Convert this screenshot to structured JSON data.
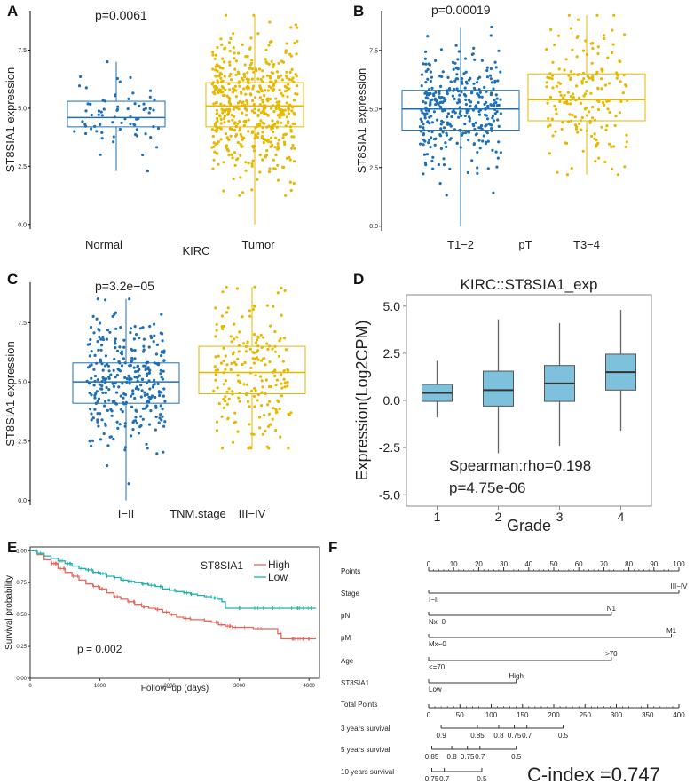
{
  "figure": {
    "panel_labels": [
      "A",
      "B",
      "C",
      "D",
      "E",
      "F"
    ]
  },
  "chart_data": [
    {
      "panel": "A",
      "type": "box_jitter",
      "ylabel": "ST8SIA1 expression",
      "xlabel": "KIRC",
      "pvalue": "p=0.0061",
      "yticks": [
        "0.0",
        "2.5",
        "5.0",
        "7.5"
      ],
      "ylim": [
        -0.2,
        9.2
      ],
      "groups": [
        {
          "label": "Normal",
          "color": "#1f6fb5",
          "n": 72,
          "min": 2.3,
          "q1": 4.2,
          "median": 4.6,
          "q3": 5.3,
          "max": 7.0
        },
        {
          "label": "Tumor",
          "color": "#e7b800",
          "n": 530,
          "min": 0.0,
          "q1": 4.2,
          "median": 5.1,
          "q3": 6.1,
          "max": 9.0
        }
      ]
    },
    {
      "panel": "B",
      "type": "box_jitter",
      "ylabel": "ST8SIA1 expression",
      "xlabel": "pT",
      "pvalue": "p=0.00019",
      "yticks": [
        "0.0",
        "2.5",
        "5.0",
        "7.5"
      ],
      "ylim": [
        -0.2,
        9.2
      ],
      "groups": [
        {
          "label": "T1−2",
          "color": "#1f6fb5",
          "n": 340,
          "min": 0.0,
          "q1": 4.1,
          "median": 5.0,
          "q3": 5.8,
          "max": 8.5
        },
        {
          "label": "T3−4",
          "color": "#e7b800",
          "n": 190,
          "min": 2.2,
          "q1": 4.5,
          "median": 5.4,
          "q3": 6.5,
          "max": 9.0
        }
      ]
    },
    {
      "panel": "C",
      "type": "box_jitter",
      "ylabel": "ST8SIA1 expression",
      "xlabel": "TNM.stage",
      "pvalue": "p=3.2e−05",
      "yticks": [
        "0.0",
        "2.5",
        "5.0",
        "7.5"
      ],
      "ylim": [
        -0.2,
        9.2
      ],
      "groups": [
        {
          "label": "I−II",
          "color": "#1f6fb5",
          "n": 320,
          "min": 0.0,
          "q1": 4.1,
          "median": 5.0,
          "q3": 5.8,
          "max": 8.5
        },
        {
          "label": "III−IV",
          "color": "#e7b800",
          "n": 210,
          "min": 2.2,
          "q1": 4.5,
          "median": 5.4,
          "q3": 6.5,
          "max": 9.0
        }
      ]
    },
    {
      "panel": "D",
      "type": "boxplot",
      "title": "KIRC::ST8SIA1_exp",
      "ylabel": "Expression(Log2CPM)",
      "xlabel": "Grade",
      "yticks": [
        "5.0",
        "2.5",
        "0.0",
        "-2.5",
        "-5.0"
      ],
      "ylim": [
        -5.6,
        5.6
      ],
      "fill": "#7ec1dc",
      "categories": [
        "1",
        "2",
        "3",
        "4"
      ],
      "boxes": [
        {
          "min": -0.9,
          "q1": -0.05,
          "median": 0.4,
          "q3": 0.85,
          "max": 2.1
        },
        {
          "min": -2.8,
          "q1": -0.3,
          "median": 0.55,
          "q3": 1.55,
          "max": 4.3
        },
        {
          "min": -2.4,
          "q1": -0.05,
          "median": 0.9,
          "q3": 1.85,
          "max": 4.1
        },
        {
          "min": -1.6,
          "q1": 0.55,
          "median": 1.5,
          "q3": 2.45,
          "max": 4.8
        }
      ],
      "annotation": [
        "Spearman:rho=0.198",
        "p=4.75e-06"
      ]
    },
    {
      "panel": "E",
      "type": "line",
      "subtype": "kaplan_meier",
      "xlabel": "Follow−up (days)",
      "ylabel": "Survival probability",
      "xticks": [
        "0",
        "1000",
        "2000",
        "3000",
        "4000"
      ],
      "yticks": [
        "0.00",
        "0.25",
        "0.50",
        "0.75",
        "1.00"
      ],
      "xlim": [
        0,
        4150
      ],
      "ylim": [
        0,
        1.03
      ],
      "legend_title": "ST8SIA1",
      "pvalue": "p = 0.002",
      "series": [
        {
          "name": "High",
          "color": "#e8665a",
          "x": [
            0,
            100,
            200,
            300,
            400,
            500,
            600,
            700,
            800,
            900,
            1000,
            1100,
            1200,
            1300,
            1400,
            1500,
            1600,
            1700,
            1800,
            1900,
            2000,
            2100,
            2200,
            2300,
            2400,
            2500,
            2600,
            2700,
            2800,
            2900,
            3000,
            3100,
            3200,
            3300,
            3400,
            3500,
            3550,
            3600,
            3700,
            3800,
            3900,
            4000,
            4100
          ],
          "y": [
            1.0,
            0.97,
            0.93,
            0.9,
            0.86,
            0.83,
            0.8,
            0.77,
            0.74,
            0.72,
            0.7,
            0.67,
            0.64,
            0.62,
            0.6,
            0.58,
            0.56,
            0.55,
            0.54,
            0.52,
            0.5,
            0.48,
            0.47,
            0.46,
            0.46,
            0.45,
            0.44,
            0.42,
            0.41,
            0.4,
            0.4,
            0.4,
            0.39,
            0.39,
            0.39,
            0.39,
            0.35,
            0.31,
            0.31,
            0.31,
            0.31,
            0.31,
            0.31
          ]
        },
        {
          "name": "Low",
          "color": "#20b2aa",
          "x": [
            0,
            100,
            200,
            300,
            400,
            500,
            600,
            700,
            800,
            900,
            1000,
            1100,
            1200,
            1300,
            1400,
            1500,
            1600,
            1700,
            1800,
            1900,
            2000,
            2100,
            2200,
            2300,
            2400,
            2500,
            2600,
            2700,
            2750,
            2800,
            2900,
            3000,
            3100,
            3200,
            3300,
            3400,
            3500,
            3600,
            3700,
            3800,
            3900,
            4000,
            4100
          ],
          "y": [
            1.0,
            0.98,
            0.96,
            0.94,
            0.92,
            0.9,
            0.88,
            0.86,
            0.85,
            0.83,
            0.82,
            0.8,
            0.79,
            0.77,
            0.76,
            0.75,
            0.74,
            0.73,
            0.72,
            0.7,
            0.69,
            0.68,
            0.67,
            0.66,
            0.65,
            0.64,
            0.63,
            0.62,
            0.6,
            0.55,
            0.55,
            0.55,
            0.55,
            0.55,
            0.55,
            0.55,
            0.55,
            0.55,
            0.55,
            0.55,
            0.55,
            0.55,
            0.55
          ]
        }
      ]
    },
    {
      "panel": "F",
      "type": "nomogram",
      "c_index": "C-index =0.747",
      "points_range": [
        0,
        100
      ],
      "points_ticks": [
        "0",
        "10",
        "20",
        "30",
        "40",
        "50",
        "60",
        "70",
        "80",
        "90",
        "100"
      ],
      "total_range": [
        0,
        400
      ],
      "total_ticks": [
        "0",
        "50",
        "100",
        "150",
        "200",
        "250",
        "300",
        "350",
        "400"
      ],
      "variables": [
        {
          "name": "Stage",
          "start": 0,
          "end": 100,
          "low_label": "I−II",
          "high_label": "III−IV"
        },
        {
          "name": "pN",
          "start": 0,
          "end": 73,
          "low_label": "Nx−0",
          "high_label": "N1"
        },
        {
          "name": "pM",
          "start": 0,
          "end": 97,
          "low_label": "Mx−0",
          "high_label": "M1"
        },
        {
          "name": "Age",
          "start": 0,
          "end": 73,
          "low_label": "<=70",
          "high_label": ">70"
        },
        {
          "name": "ST8SIA1",
          "start": 0,
          "end": 35,
          "low_label": "Low",
          "high_label": "High"
        }
      ],
      "survival_axes": [
        {
          "name": "3 years survival",
          "ticks": [
            {
              "label": "0.9",
              "total": 20
            },
            {
              "label": "0.85",
              "total": 78
            },
            {
              "label": "0.8",
              "total": 112
            },
            {
              "label": "0.75",
              "total": 137
            },
            {
              "label": "0.7",
              "total": 157
            },
            {
              "label": "0.5",
              "total": 215
            }
          ]
        },
        {
          "name": "5 years survival",
          "ticks": [
            {
              "label": "0.85",
              "total": 5
            },
            {
              "label": "0.8",
              "total": 37
            },
            {
              "label": "0.75",
              "total": 62
            },
            {
              "label": "0.7",
              "total": 82
            },
            {
              "label": "0.5",
              "total": 140
            }
          ]
        },
        {
          "name": "10 years survival",
          "ticks": [
            {
              "label": "0.75",
              "total": 5
            },
            {
              "label": "0.7",
              "total": 25
            },
            {
              "label": "0.5",
              "total": 85
            }
          ]
        }
      ],
      "row_labels": {
        "points": "Points",
        "total": "Total Points"
      }
    }
  ]
}
